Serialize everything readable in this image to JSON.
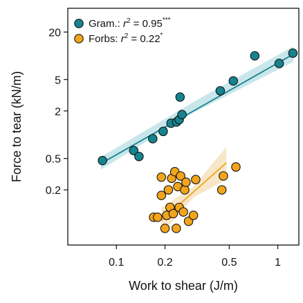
{
  "chart_data": {
    "type": "scatter",
    "x_scale": "log",
    "y_scale": "log",
    "xlabel": "Work to shear (J/m)",
    "ylabel": "Force to tear (kN/m)",
    "xlim": [
      0.05,
      1.35
    ],
    "ylim": [
      0.04,
      40
    ],
    "x_ticks": [
      0.1,
      0.2,
      0.5,
      1
    ],
    "x_tick_labels": [
      "0.1",
      "0.2",
      "0.5",
      "1"
    ],
    "y_ticks": [
      0.2,
      0.5,
      2,
      5,
      20
    ],
    "y_tick_labels": [
      "0.2",
      "0.5",
      "2",
      "5",
      "20"
    ],
    "grid": false,
    "legend_position": "top-left",
    "series": [
      {
        "name": "Gram.: r2 = 0.95***",
        "legend": {
          "prefix": "Gram.: ",
          "r": "r",
          "sup": "2",
          "value": " = 0.95",
          "stars": "***"
        },
        "color": "#17838f",
        "band_color": "#b7dfe4",
        "fit": {
          "x": [
            0.08,
            1.25
          ],
          "y": [
            0.43,
            10.5
          ]
        },
        "band": [
          {
            "x": 0.08,
            "lo": 0.36,
            "hi": 0.52
          },
          {
            "x": 0.3,
            "lo": 1.9,
            "hi": 2.6
          },
          {
            "x": 1.25,
            "lo": 8.4,
            "hi": 13.2
          }
        ],
        "points": [
          {
            "x": 0.082,
            "y": 0.47
          },
          {
            "x": 0.128,
            "y": 0.63
          },
          {
            "x": 0.138,
            "y": 0.53
          },
          {
            "x": 0.168,
            "y": 0.89
          },
          {
            "x": 0.195,
            "y": 1.1
          },
          {
            "x": 0.218,
            "y": 1.4
          },
          {
            "x": 0.236,
            "y": 1.45
          },
          {
            "x": 0.245,
            "y": 1.55
          },
          {
            "x": 0.248,
            "y": 3.0
          },
          {
            "x": 0.255,
            "y": 1.8
          },
          {
            "x": 0.44,
            "y": 3.6
          },
          {
            "x": 0.53,
            "y": 4.8
          },
          {
            "x": 0.72,
            "y": 10.0
          },
          {
            "x": 1.02,
            "y": 8.0
          },
          {
            "x": 1.24,
            "y": 10.8
          }
        ]
      },
      {
        "name": "Forbs: r2 = 0.22*",
        "legend": {
          "prefix": "Forbs: ",
          "r": "r",
          "sup": "2",
          "value": " = 0.22",
          "stars": "*"
        },
        "color": "#f2a51c",
        "band_color": "#f6ddb6",
        "fit": {
          "x": [
            0.19,
            0.48
          ],
          "y": [
            0.082,
            0.44
          ]
        },
        "band": [
          {
            "x": 0.19,
            "lo": 0.055,
            "hi": 0.12
          },
          {
            "x": 0.3,
            "lo": 0.16,
            "hi": 0.22
          },
          {
            "x": 0.48,
            "lo": 0.27,
            "hi": 0.7
          }
        ],
        "points": [
          {
            "x": 0.17,
            "y": 0.09
          },
          {
            "x": 0.18,
            "y": 0.09
          },
          {
            "x": 0.19,
            "y": 0.17
          },
          {
            "x": 0.19,
            "y": 0.29
          },
          {
            "x": 0.2,
            "y": 0.065
          },
          {
            "x": 0.205,
            "y": 0.095
          },
          {
            "x": 0.21,
            "y": 0.2
          },
          {
            "x": 0.215,
            "y": 0.12
          },
          {
            "x": 0.22,
            "y": 0.28
          },
          {
            "x": 0.225,
            "y": 0.1
          },
          {
            "x": 0.23,
            "y": 0.34
          },
          {
            "x": 0.235,
            "y": 0.065
          },
          {
            "x": 0.24,
            "y": 0.22
          },
          {
            "x": 0.245,
            "y": 0.12
          },
          {
            "x": 0.25,
            "y": 0.3
          },
          {
            "x": 0.26,
            "y": 0.105
          },
          {
            "x": 0.265,
            "y": 0.2
          },
          {
            "x": 0.27,
            "y": 0.25
          },
          {
            "x": 0.28,
            "y": 0.08
          },
          {
            "x": 0.3,
            "y": 0.095
          },
          {
            "x": 0.31,
            "y": 0.27
          },
          {
            "x": 0.45,
            "y": 0.2
          },
          {
            "x": 0.46,
            "y": 0.3
          },
          {
            "x": 0.55,
            "y": 0.39
          }
        ]
      }
    ]
  }
}
